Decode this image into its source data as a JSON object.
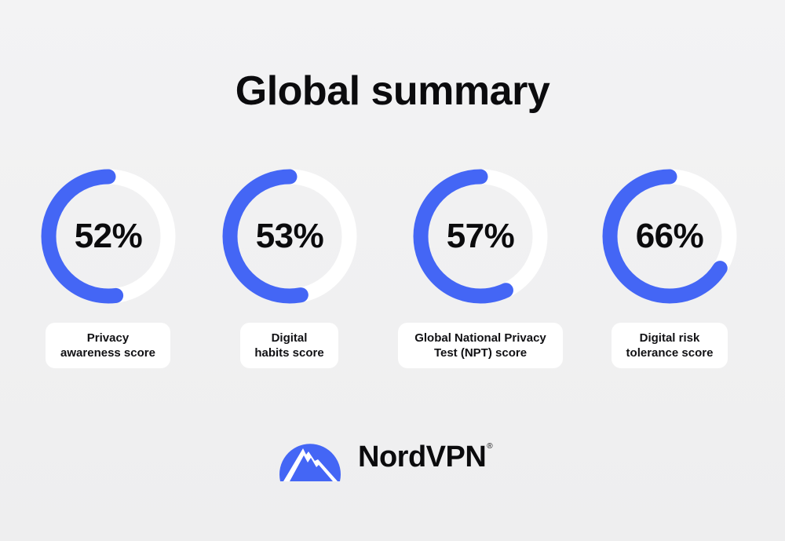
{
  "title": "Global summary",
  "colors": {
    "accent": "#4466f5",
    "track": "#ffffff",
    "background": "#f1f1f2",
    "text": "#0b0b0d"
  },
  "chart_data": {
    "type": "donut",
    "series": [
      {
        "label": "Privacy\nawareness score",
        "value": 52,
        "display": "52%"
      },
      {
        "label": "Digital\nhabits score",
        "value": 53,
        "display": "53%"
      },
      {
        "label": "Global National Privacy\nTest (NPT) score",
        "value": 57,
        "display": "57%"
      },
      {
        "label": "Digital risk\ntolerance score",
        "value": 66,
        "display": "66%"
      }
    ],
    "max": 100
  },
  "brand": {
    "name": "NordVPN",
    "trademark": "®",
    "logo_icon": "nordvpn-mountain-logo"
  }
}
